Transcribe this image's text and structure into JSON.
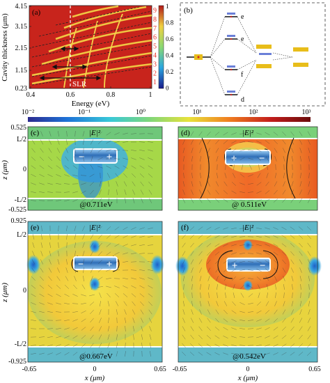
{
  "panel_a": {
    "label": "(a)",
    "ylabel": "Cavity thickness (μm)",
    "xlabel": "Energy (eV)",
    "yticks": [
      "4.15",
      "3.15",
      "2.15",
      "1.15",
      "0.23"
    ],
    "xticks": [
      "0.4",
      "0.6",
      "0.8",
      "1"
    ],
    "mode_numbers": [
      "9",
      "8",
      "7",
      "6",
      "5",
      "4",
      "3",
      "2",
      "1"
    ],
    "slr_label": "SLR",
    "colorbar_ticks": [
      "1",
      "0.8",
      "0.6",
      "0.4",
      "0.2",
      "0"
    ],
    "colors": {
      "bg": "#c8241c",
      "band": "#f0d048",
      "mode": "#ff4a4a"
    }
  },
  "panel_b": {
    "label": "(b)",
    "levels": [
      "e",
      "e",
      "f",
      "d"
    ],
    "colors": {
      "bar": "#e8bd1a"
    }
  },
  "colorbar": {
    "ticks": [
      "10⁻²",
      "10⁻¹",
      "10⁰",
      "10¹",
      "10²",
      "10³"
    ],
    "colors": [
      "#2b2a8f",
      "#1e73d8",
      "#38c8d8",
      "#7ed67a",
      "#e8e23a",
      "#f07f20",
      "#c21d1b",
      "#6a0c0c"
    ]
  },
  "field_panels": {
    "ylabel": "z (μm)",
    "xlabel": "x (μm)",
    "field_label": "|E|²",
    "row1_yticks": [
      "0.525",
      "L/2",
      "0",
      "-L/2",
      "-0.525"
    ],
    "row2_yticks": [
      "0.925",
      "L/2",
      "0",
      "-L/2",
      "-0.925"
    ],
    "xticks": [
      "-0.65",
      "0",
      "0.65"
    ],
    "items": [
      {
        "label": "(c)",
        "energy": "@0.711eV",
        "charge_left": "−",
        "charge_right": "+"
      },
      {
        "label": "(d)",
        "energy": "@ 0.511eV",
        "charge_left": "+",
        "charge_right": "−"
      },
      {
        "label": "(e)",
        "energy": "@0.667eV",
        "charge_left": "−",
        "charge_right": "+"
      },
      {
        "label": "(f)",
        "energy": "@0.542eV",
        "charge_left": "+",
        "charge_right": "−"
      }
    ]
  }
}
